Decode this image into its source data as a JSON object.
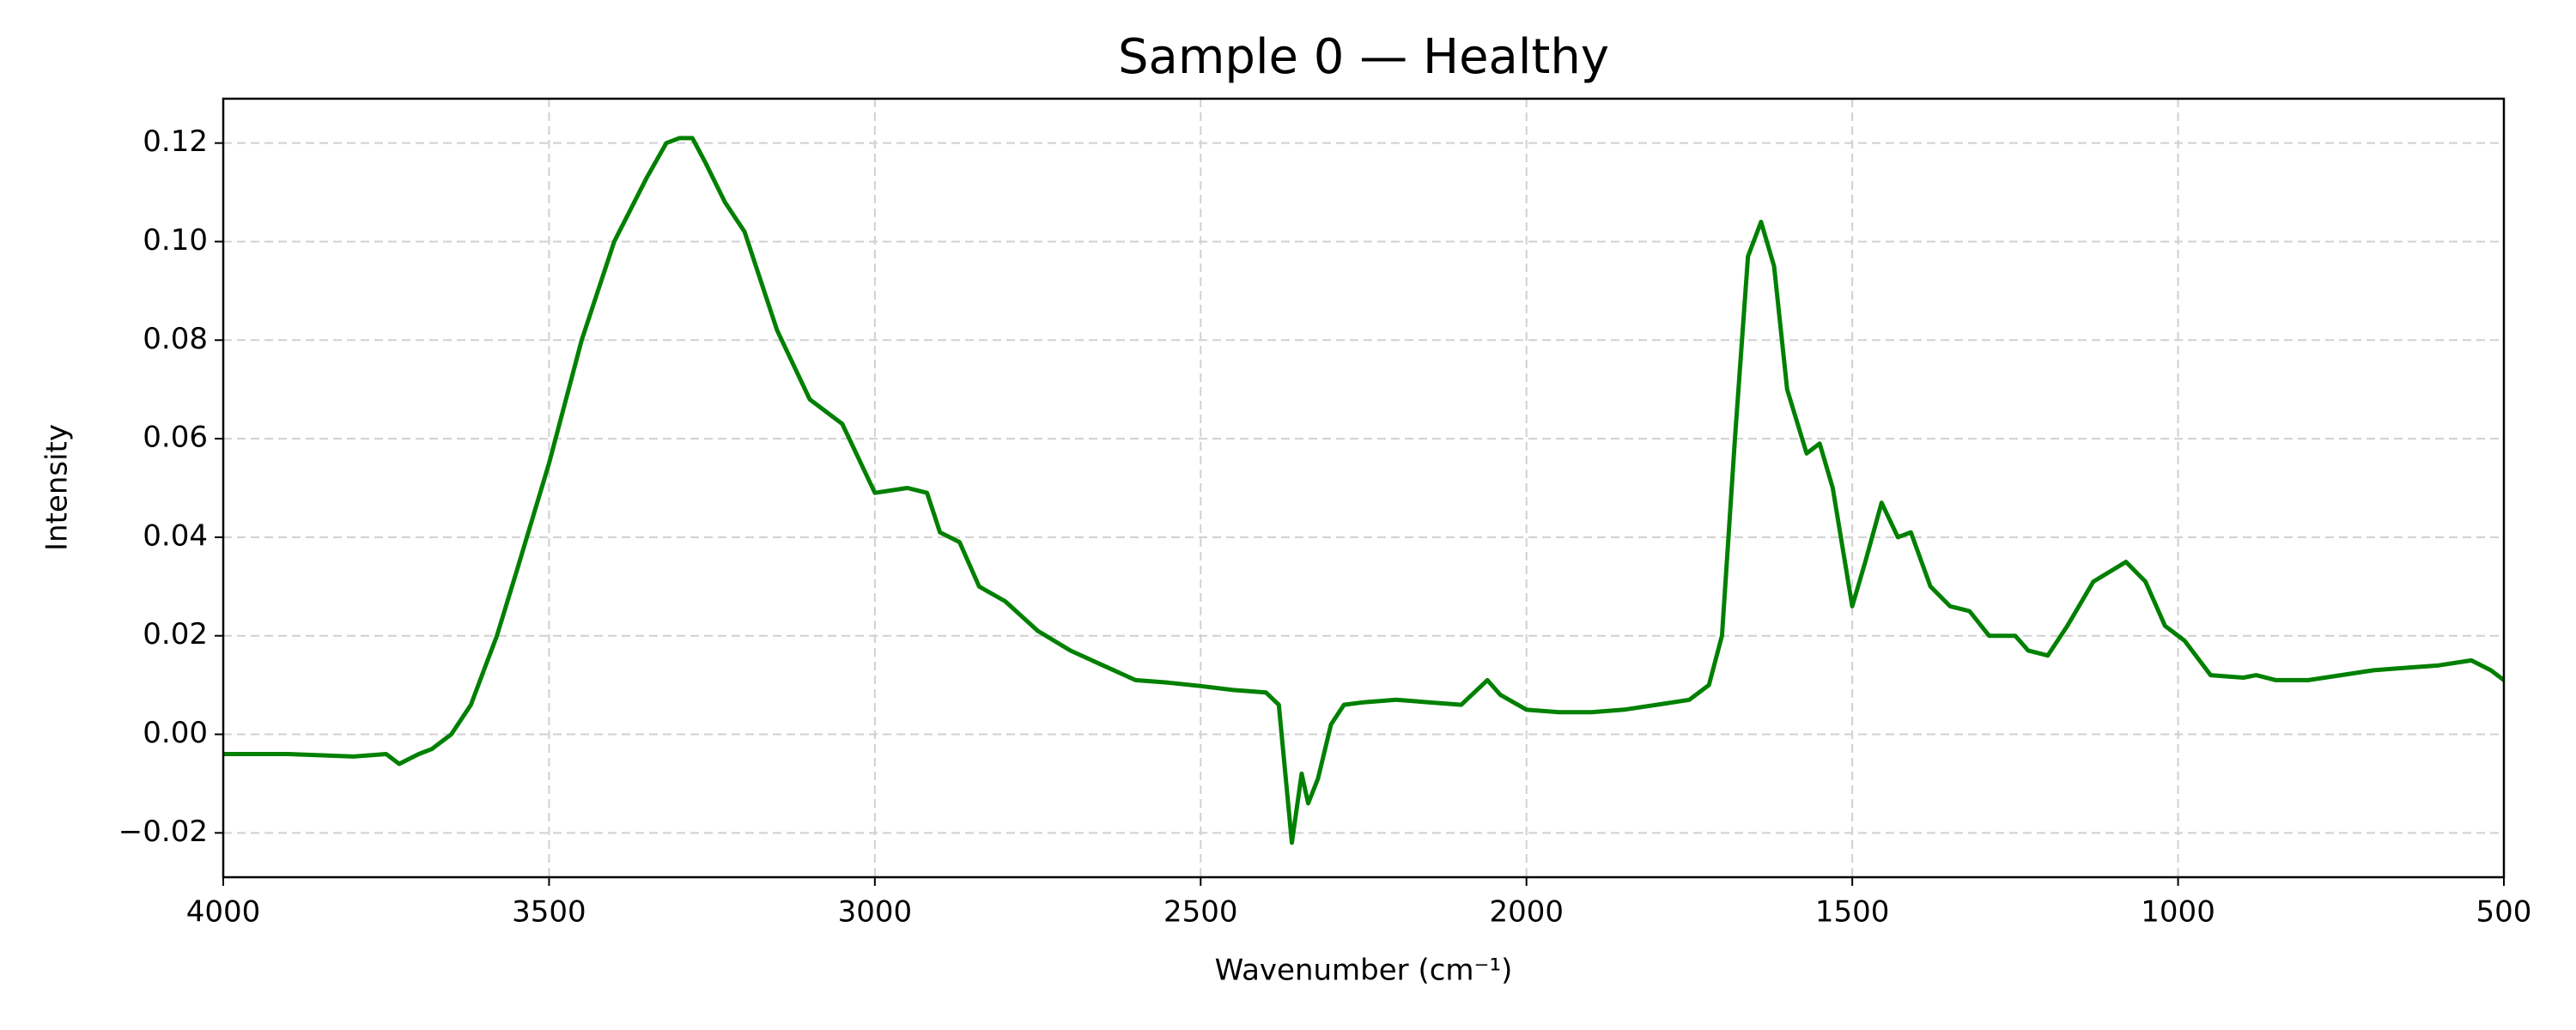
{
  "chart_data": {
    "type": "line",
    "title": "Sample 0 — Healthy",
    "x_label": "Wavenumber (cm⁻¹)",
    "y_label": "Intensity",
    "x": [
      4000,
      3900,
      3800,
      3750,
      3730,
      3700,
      3680,
      3650,
      3620,
      3600,
      3580,
      3550,
      3500,
      3450,
      3400,
      3350,
      3320,
      3300,
      3280,
      3260,
      3230,
      3200,
      3150,
      3100,
      3050,
      3000,
      2950,
      2920,
      2900,
      2870,
      2840,
      2800,
      2750,
      2700,
      2650,
      2600,
      2550,
      2500,
      2450,
      2400,
      2380,
      2360,
      2345,
      2335,
      2320,
      2300,
      2280,
      2250,
      2200,
      2150,
      2100,
      2060,
      2040,
      2000,
      1950,
      1900,
      1850,
      1800,
      1750,
      1720,
      1700,
      1680,
      1660,
      1640,
      1620,
      1600,
      1570,
      1550,
      1530,
      1500,
      1480,
      1455,
      1430,
      1410,
      1380,
      1350,
      1320,
      1290,
      1250,
      1230,
      1200,
      1170,
      1130,
      1080,
      1050,
      1020,
      990,
      950,
      900,
      880,
      850,
      800,
      750,
      700,
      650,
      600,
      550,
      520,
      500
    ],
    "values": [
      -0.004,
      -0.004,
      -0.0045,
      -0.004,
      -0.006,
      -0.004,
      -0.003,
      0.0,
      0.006,
      0.013,
      0.02,
      0.033,
      0.055,
      0.08,
      0.1,
      0.113,
      0.12,
      0.121,
      0.121,
      0.116,
      0.108,
      0.102,
      0.082,
      0.068,
      0.063,
      0.049,
      0.05,
      0.049,
      0.041,
      0.039,
      0.03,
      0.027,
      0.021,
      0.017,
      0.014,
      0.011,
      0.0105,
      0.0098,
      0.009,
      0.0085,
      0.006,
      -0.022,
      -0.008,
      -0.014,
      -0.009,
      0.002,
      0.006,
      0.0065,
      0.007,
      0.0065,
      0.006,
      0.011,
      0.008,
      0.005,
      0.0045,
      0.0045,
      0.005,
      0.006,
      0.007,
      0.01,
      0.02,
      0.06,
      0.097,
      0.104,
      0.095,
      0.07,
      0.057,
      0.059,
      0.05,
      0.026,
      0.035,
      0.047,
      0.04,
      0.041,
      0.03,
      0.026,
      0.025,
      0.02,
      0.02,
      0.017,
      0.016,
      0.022,
      0.031,
      0.035,
      0.031,
      0.022,
      0.019,
      0.012,
      0.0115,
      0.012,
      0.011,
      0.011,
      0.012,
      0.013,
      0.0135,
      0.014,
      0.015,
      0.013,
      0.011
    ],
    "color": "#008000",
    "xlim": [
      4000,
      500
    ],
    "xticks": [
      4000,
      3500,
      3000,
      2500,
      2000,
      1500,
      1000,
      500
    ],
    "ylim": [
      -0.029,
      0.129
    ],
    "yticks": [
      {
        "value": -0.02,
        "label": "−0.02"
      },
      {
        "value": 0,
        "label": "0.00"
      },
      0.02,
      0.04,
      0.06,
      0.08,
      {
        "value": 0.1,
        "label": "0.10"
      },
      0.12
    ],
    "grid": true
  }
}
